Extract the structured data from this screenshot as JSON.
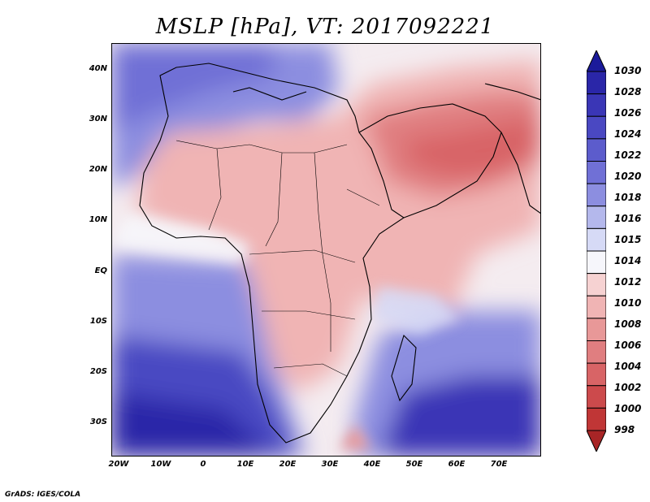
{
  "title": "MSLP [hPa], VT: 2017092221",
  "credit": "GrADS: IGES/COLA",
  "lat_labels": [
    "40N",
    "30N",
    "20N",
    "10N",
    "EQ",
    "10S",
    "20S",
    "30S"
  ],
  "lon_labels": [
    "20W",
    "10W",
    "0",
    "10E",
    "20E",
    "30E",
    "40E",
    "50E",
    "60E",
    "70E"
  ],
  "colorbar": {
    "levels": [
      "1030",
      "1028",
      "1026",
      "1024",
      "1022",
      "1020",
      "1018",
      "1016",
      "1015",
      "1014",
      "1012",
      "1010",
      "1008",
      "1006",
      "1004",
      "1002",
      "1000",
      "998"
    ],
    "colors": [
      "#1b1a9a",
      "#2a26a8",
      "#3a36b6",
      "#4a48c2",
      "#5c5ccc",
      "#7070d6",
      "#8c8ee0",
      "#b4b8ec",
      "#d6daf6",
      "#f6f6fb",
      "#f6d2d2",
      "#f0b4b4",
      "#e89898",
      "#e07e80",
      "#d86466",
      "#cc4a4c",
      "#c03636",
      "#a82526"
    ]
  },
  "colors": {
    "high": "#1c1899",
    "low": "#c83a3a",
    "neutral": "#ffffff",
    "coast": "#000000"
  }
}
